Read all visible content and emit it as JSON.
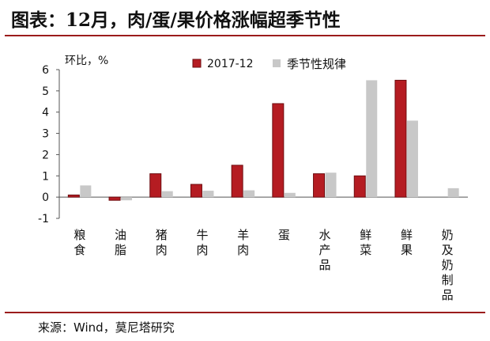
{
  "title": "图表：12月，肉/蛋/果价格涨幅超季节性",
  "source": "来源：Wind，莫尼塔研究",
  "colors": {
    "accent": "#9b1c1c",
    "bar_2017": "#b51c22",
    "bar_2017_edge": "#6e0d10",
    "bar_seasonal": "#c8c8c8"
  },
  "chart_data": {
    "type": "bar",
    "ylabel": "环比，%",
    "ylim": [
      -1,
      6
    ],
    "yticks": [
      -1,
      0,
      1,
      2,
      3,
      4,
      5,
      6
    ],
    "legend_position": "top",
    "categories": [
      "粮食",
      "油脂",
      "猪肉",
      "牛肉",
      "羊肉",
      "蛋",
      "水产品",
      "鲜菜",
      "鲜果",
      "奶及奶制品"
    ],
    "series": [
      {
        "name": "2017-12",
        "color": "#b51c22",
        "values": [
          0.1,
          -0.15,
          1.1,
          0.6,
          1.5,
          4.4,
          1.1,
          1.0,
          5.5,
          0
        ]
      },
      {
        "name": "季节性规律",
        "color": "#c8c8c8",
        "values": [
          0.55,
          -0.15,
          0.28,
          0.3,
          0.32,
          0.2,
          1.15,
          5.5,
          3.6,
          0.42
        ]
      }
    ]
  }
}
